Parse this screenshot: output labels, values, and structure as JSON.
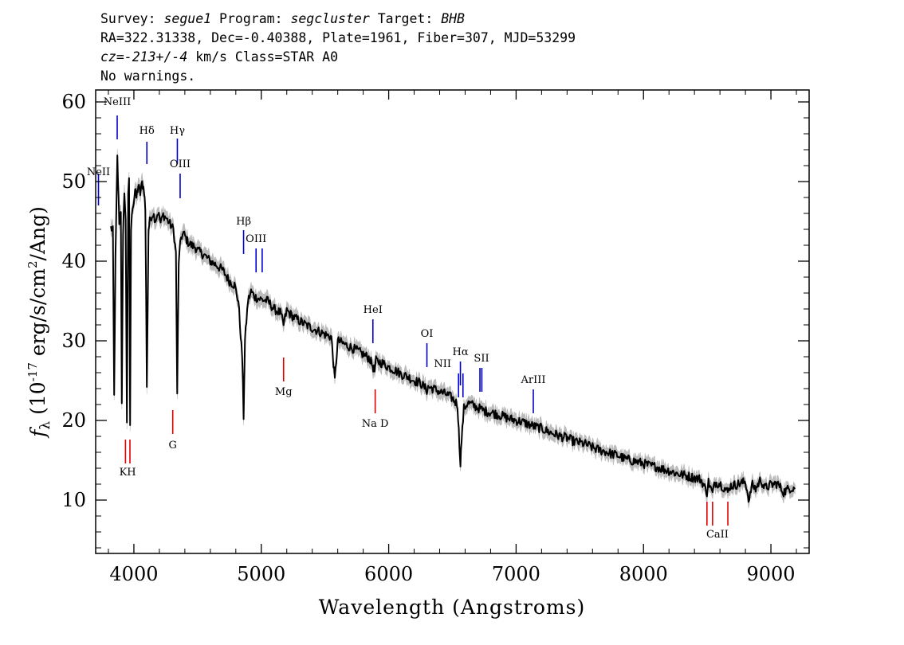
{
  "header": {
    "line1": [
      {
        "t": "Survey: "
      },
      {
        "t": "segue1",
        "i": true
      },
      {
        "t": " Program: "
      },
      {
        "t": "segcluster",
        "i": true
      },
      {
        "t": " Target: "
      },
      {
        "t": "BHB",
        "i": true
      }
    ],
    "line2": [
      {
        "t": "RA=322.31338, Dec=-0.40388, Plate=1961, Fiber=307, MJD=53299"
      }
    ],
    "line3": [
      {
        "t": "cz=-213+/-4",
        "i": true
      },
      {
        "t": " km/s Class=STAR A0"
      }
    ],
    "line4": [
      {
        "t": "No warnings."
      }
    ]
  },
  "chart_data": {
    "type": "line",
    "xlabel": "Wavelength (Angstroms)",
    "ylabel_parts": {
      "symbol": "f",
      "sub": "λ",
      "pre": " (10",
      "exp1": "-17",
      "mid": " erg/s/cm",
      "exp2": "2",
      "post": "/Ang)"
    },
    "xlim": [
      3700,
      9300
    ],
    "ylim": [
      3.3,
      61.5
    ],
    "x_ticks": [
      4000,
      5000,
      6000,
      7000,
      8000,
      9000
    ],
    "y_ticks": [
      10,
      20,
      30,
      40,
      50,
      60
    ],
    "grid": false,
    "colors": {
      "flux": "#000000",
      "error_band": "#bbbbbb",
      "emission": "#0000cc",
      "absorption": "#dd0000"
    },
    "series": [
      {
        "style": "black spectrum line with grey error band",
        "points": [
          [
            3820,
            44.2
          ],
          [
            3835,
            43.8
          ],
          [
            3845,
            23.0
          ],
          [
            3855,
            40.0
          ],
          [
            3870,
            53.0
          ],
          [
            3885,
            45.0
          ],
          [
            3898,
            46.5
          ],
          [
            3905,
            22.5
          ],
          [
            3915,
            43.0
          ],
          [
            3925,
            49.0
          ],
          [
            3935,
            45.0
          ],
          [
            3945,
            20.0
          ],
          [
            3955,
            48.0
          ],
          [
            3962,
            50.0
          ],
          [
            3970,
            19.5
          ],
          [
            3978,
            44.0
          ],
          [
            3990,
            47.0
          ],
          [
            4000,
            47.5
          ],
          [
            4010,
            49.0
          ],
          [
            4020,
            48.0
          ],
          [
            4035,
            49.5
          ],
          [
            4050,
            48.5
          ],
          [
            4065,
            49.8
          ],
          [
            4080,
            49.0
          ],
          [
            4090,
            46.5
          ],
          [
            4102,
            24.5
          ],
          [
            4115,
            44.0
          ],
          [
            4130,
            45.5
          ],
          [
            4150,
            46.0
          ],
          [
            4170,
            45.2
          ],
          [
            4190,
            46.2
          ],
          [
            4210,
            44.8
          ],
          [
            4230,
            45.8
          ],
          [
            4250,
            45.5
          ],
          [
            4270,
            45.0
          ],
          [
            4290,
            44.5
          ],
          [
            4310,
            44.0
          ],
          [
            4330,
            41.0
          ],
          [
            4340,
            23.0
          ],
          [
            4352,
            40.0
          ],
          [
            4370,
            43.0
          ],
          [
            4390,
            43.5
          ],
          [
            4420,
            42.5
          ],
          [
            4450,
            42.0
          ],
          [
            4480,
            41.8
          ],
          [
            4510,
            41.2
          ],
          [
            4550,
            40.8
          ],
          [
            4600,
            40.0
          ],
          [
            4650,
            39.5
          ],
          [
            4700,
            38.8
          ],
          [
            4750,
            37.5
          ],
          [
            4790,
            37.0
          ],
          [
            4820,
            35.0
          ],
          [
            4850,
            28.0
          ],
          [
            4861,
            20.5
          ],
          [
            4872,
            30.0
          ],
          [
            4895,
            35.0
          ],
          [
            4920,
            36.2
          ],
          [
            4950,
            35.5
          ],
          [
            5000,
            35.2
          ],
          [
            5050,
            35.0
          ],
          [
            5100,
            34.0
          ],
          [
            5150,
            33.5
          ],
          [
            5175,
            32.0
          ],
          [
            5200,
            33.8
          ],
          [
            5250,
            33.0
          ],
          [
            5300,
            32.5
          ],
          [
            5350,
            32.0
          ],
          [
            5400,
            31.6
          ],
          [
            5450,
            31.2
          ],
          [
            5500,
            30.8
          ],
          [
            5550,
            30.5
          ],
          [
            5577,
            25.0
          ],
          [
            5600,
            30.0
          ],
          [
            5650,
            29.6
          ],
          [
            5700,
            29.2
          ],
          [
            5750,
            28.8
          ],
          [
            5800,
            28.3
          ],
          [
            5850,
            27.8
          ],
          [
            5890,
            26.2
          ],
          [
            5900,
            27.5
          ],
          [
            5950,
            27.2
          ],
          [
            6000,
            26.7
          ],
          [
            6050,
            26.3
          ],
          [
            6100,
            25.8
          ],
          [
            6150,
            25.5
          ],
          [
            6200,
            25.0
          ],
          [
            6250,
            24.7
          ],
          [
            6300,
            23.8
          ],
          [
            6310,
            24.2
          ],
          [
            6350,
            24.0
          ],
          [
            6400,
            23.6
          ],
          [
            6450,
            23.3
          ],
          [
            6500,
            22.8
          ],
          [
            6540,
            22.0
          ],
          [
            6555,
            17.0
          ],
          [
            6563,
            14.8
          ],
          [
            6572,
            17.5
          ],
          [
            6590,
            21.5
          ],
          [
            6620,
            22.2
          ],
          [
            6650,
            22.0
          ],
          [
            6700,
            21.6
          ],
          [
            6750,
            21.2
          ],
          [
            6800,
            21.0
          ],
          [
            6850,
            20.8
          ],
          [
            6900,
            20.5
          ],
          [
            6950,
            20.2
          ],
          [
            7000,
            20.0
          ],
          [
            7050,
            19.8
          ],
          [
            7100,
            19.5
          ],
          [
            7150,
            19.2
          ],
          [
            7200,
            19.0
          ],
          [
            7250,
            18.6
          ],
          [
            7300,
            18.3
          ],
          [
            7350,
            18.0
          ],
          [
            7400,
            17.8
          ],
          [
            7450,
            17.4
          ],
          [
            7500,
            17.2
          ],
          [
            7550,
            17.0
          ],
          [
            7600,
            16.6
          ],
          [
            7650,
            16.3
          ],
          [
            7700,
            16.1
          ],
          [
            7750,
            15.8
          ],
          [
            7800,
            15.6
          ],
          [
            7850,
            15.2
          ],
          [
            7900,
            15.0
          ],
          [
            7950,
            14.8
          ],
          [
            8000,
            14.6
          ],
          [
            8050,
            14.3
          ],
          [
            8100,
            14.2
          ],
          [
            8150,
            13.9
          ],
          [
            8200,
            13.7
          ],
          [
            8250,
            13.4
          ],
          [
            8300,
            13.2
          ],
          [
            8350,
            13.0
          ],
          [
            8400,
            12.8
          ],
          [
            8450,
            12.6
          ],
          [
            8498,
            11.0
          ],
          [
            8510,
            12.3
          ],
          [
            8542,
            10.8
          ],
          [
            8560,
            12.2
          ],
          [
            8600,
            12.1
          ],
          [
            8662,
            11.0
          ],
          [
            8680,
            11.8
          ],
          [
            8720,
            11.9
          ],
          [
            8760,
            12.1
          ],
          [
            8800,
            12.3
          ],
          [
            8830,
            9.8
          ],
          [
            8850,
            12.0
          ],
          [
            8880,
            11.4
          ],
          [
            8920,
            12.6
          ],
          [
            8950,
            11.5
          ],
          [
            9000,
            11.9
          ],
          [
            9050,
            12.1
          ],
          [
            9100,
            11.0
          ],
          [
            9150,
            11.5
          ],
          [
            9190,
            11.6
          ]
        ]
      }
    ],
    "emission_lines": [
      {
        "label": "NeII",
        "x": 3722,
        "y": [
          47.0,
          51.0
        ],
        "label_y": 50.8
      },
      {
        "label": "NeIII",
        "x": 3869,
        "y": [
          55.3,
          58.3
        ],
        "label_y": 59.6
      },
      {
        "label": "Hδ",
        "x": 4102,
        "y": [
          52.2,
          55.0
        ],
        "label_y": 56.0
      },
      {
        "label": "Hγ",
        "x": 4341,
        "y": [
          52.2,
          55.4
        ],
        "label_y": 56.0
      },
      {
        "label": "OIII",
        "x": 4363,
        "y": [
          47.9,
          51.0
        ],
        "label_y": 51.8
      },
      {
        "label": "Hβ",
        "x": 4861,
        "y": [
          40.9,
          43.9
        ],
        "label_y": 44.6
      },
      {
        "label": "OIII",
        "x": 4959,
        "y": [
          38.6,
          41.6
        ],
        "label_y": 42.4
      },
      {
        "label": "OIII",
        "x": 5007,
        "y": [
          38.6,
          41.6
        ],
        "label_y": null
      },
      {
        "label": "HeI",
        "x": 5876,
        "y": [
          29.7,
          32.7
        ],
        "label_y": 33.5
      },
      {
        "label": "OI",
        "x": 6300,
        "y": [
          26.7,
          29.7
        ],
        "label_y": 30.5
      },
      {
        "label": "NII",
        "x": 6548,
        "y": [
          22.9,
          25.9
        ],
        "label_y": 26.7
      },
      {
        "label": "Hα",
        "x": 6563,
        "y": [
          24.4,
          27.4
        ],
        "label_y": 28.2
      },
      {
        "label": "NII",
        "x": 6583,
        "y": [
          22.9,
          25.9
        ],
        "label_y": null
      },
      {
        "label": "SII",
        "x": 6716,
        "y": [
          23.6,
          26.6
        ],
        "label_y": 27.4
      },
      {
        "label": "SII",
        "x": 6731,
        "y": [
          23.6,
          26.6
        ],
        "label_y": null
      },
      {
        "label": "ArIII",
        "x": 7135,
        "y": [
          20.9,
          23.9
        ],
        "label_y": 24.7
      }
    ],
    "emission_label_offsets": {
      "NII@6548": -20,
      "SII@6716": 2,
      "NII@6583": 18
    },
    "absorption_lines": [
      {
        "label": "K",
        "x": 3934,
        "y": [
          14.6,
          17.6
        ]
      },
      {
        "label": "H",
        "x": 3969,
        "y": [
          14.6,
          17.6
        ]
      },
      {
        "label": "G",
        "x": 4305,
        "y": [
          18.3,
          21.3
        ],
        "label_y": 16.5
      },
      {
        "label": "Mg",
        "x": 5175,
        "y": [
          24.9,
          27.9
        ],
        "label_y": 23.2
      },
      {
        "label": "Na D",
        "x": 5894,
        "y": [
          20.9,
          23.9
        ],
        "label_y": 19.2
      },
      {
        "label": "CaII",
        "x": 8498,
        "y": [
          6.8,
          9.8
        ]
      },
      {
        "label": "CaII",
        "x": 8542,
        "y": [
          6.8,
          9.8
        ]
      },
      {
        "label": "CaII",
        "x": 8662,
        "y": [
          6.8,
          9.8
        ]
      }
    ],
    "group_labels": [
      {
        "label": "KH",
        "x": 3951,
        "y": 13.1
      },
      {
        "label": "CaII",
        "x": 8580,
        "y": 5.3
      }
    ]
  }
}
